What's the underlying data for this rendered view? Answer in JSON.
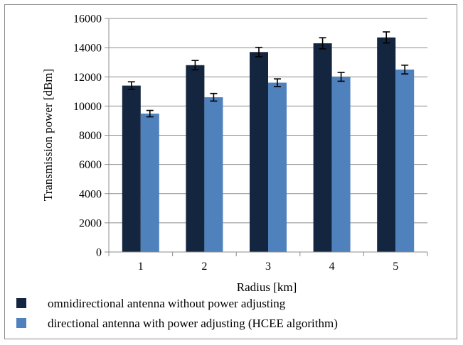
{
  "chart_data": {
    "type": "bar",
    "title": "",
    "xlabel": "Radius [km]",
    "ylabel": "Transmission power [dBm]",
    "ylim": [
      0,
      16000
    ],
    "yticks": [
      0,
      2000,
      4000,
      6000,
      8000,
      10000,
      12000,
      14000,
      16000
    ],
    "categories": [
      "1",
      "2",
      "3",
      "4",
      "5"
    ],
    "grid": true,
    "legend_position": "bottom",
    "series": [
      {
        "name": "omnidirectional antenna without power adjusting",
        "color": "#14263f",
        "values": [
          11400,
          12800,
          13700,
          14300,
          14700
        ],
        "errors": [
          260,
          320,
          320,
          380,
          380
        ]
      },
      {
        "name": "directional antenna with power adjusting (HCEE algorithm)",
        "color": "#4f81bd",
        "values": [
          9480,
          10600,
          11600,
          12000,
          12500
        ],
        "errors": [
          220,
          260,
          260,
          300,
          300
        ]
      }
    ]
  }
}
